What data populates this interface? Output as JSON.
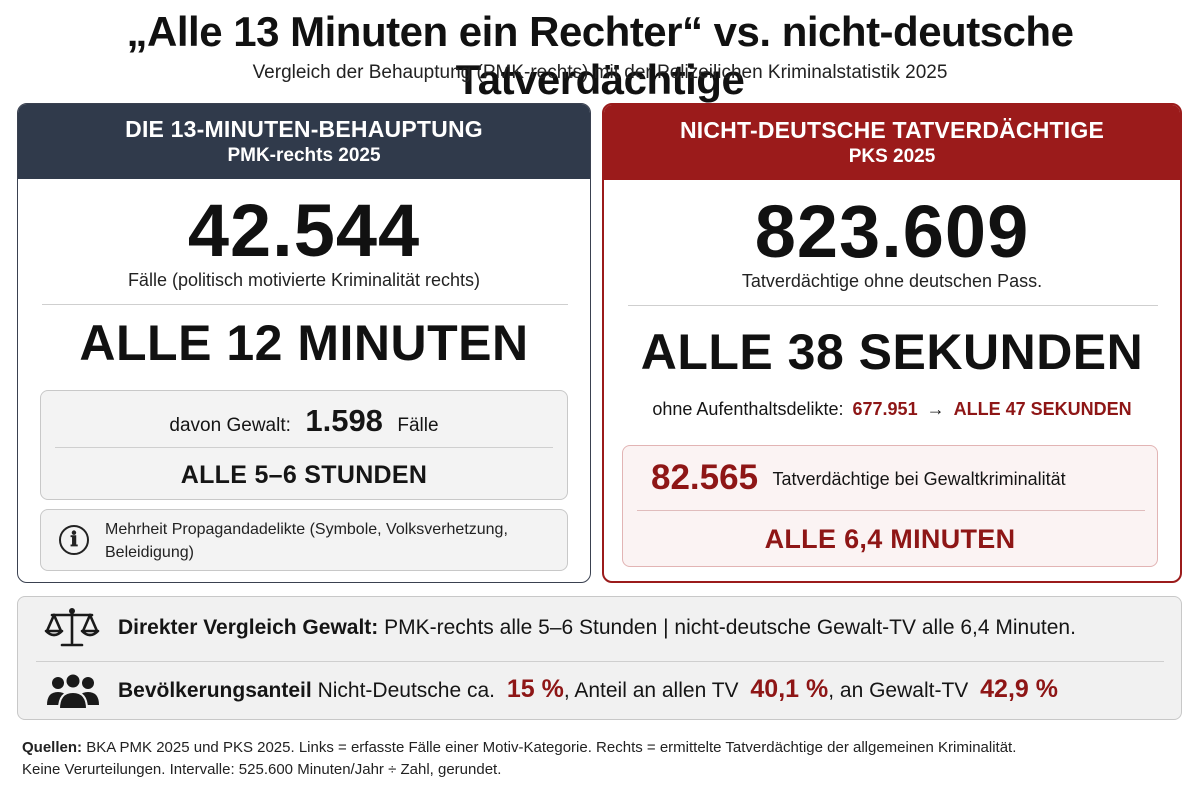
{
  "header": {
    "title": "„Alle 13 Minuten ein Rechter“ vs. nicht-deutsche Tatverdächtige",
    "subtitle": "Vergleich der Behauptung (PMK-rechts) mit der Polizeilichen Kriminalstatistik 2025"
  },
  "left": {
    "head_line1": "DIE 13-MINUTEN-BEHAUPTUNG",
    "head_line2": "PMK-rechts 2025",
    "big_number": "42.544",
    "big_caption": "Fälle (politisch motivierte Kriminalität rechts)",
    "headline": "ALLE 12 MINUTEN",
    "violence_prefix": "davon Gewalt:",
    "violence_number": "1.598",
    "violence_suffix": "Fälle",
    "violence_interval": "ALLE 5–6 STUNDEN",
    "info_icon": "ℹ",
    "info_text": "Mehrheit Propagandadelikte (Symbole, Volksverhetzung, Beleidigung)"
  },
  "right": {
    "head_line1": "NICHT-DEUTSCHE TATVERDÄCHTIGE",
    "head_line2": "PKS 2025",
    "big_number": "823.609",
    "big_caption": "Tatverdächtige ohne deutschen Pass.",
    "headline": "ALLE 38 SEKUNDEN",
    "residence_prefix": "ohne Aufenthaltsdelikte:",
    "residence_number": "677.951",
    "residence_arrow": "→",
    "residence_interval": "ALLE 47 SEKUNDEN",
    "violence_number": "82.565",
    "violence_label": "Tatverdächtige bei Gewaltkriminalität",
    "violence_interval": "ALLE 6,4 MINUTEN"
  },
  "comparison": {
    "icon_scale": "scale-icon",
    "icon_people": "people-icon",
    "row1_bold": "Direkter Vergleich Gewalt:",
    "row1_text": "PMK-rechts alle 5–6 Stunden | nicht-deutsche Gewalt-TV alle 6,4 Minuten.",
    "row2_bold": "Bevölkerungsanteil",
    "row2_text1": "Nicht-Deutsche ca.",
    "row2_pct1": "15 %",
    "row2_text2": ", Anteil an allen TV",
    "row2_pct2": "40,1 %",
    "row2_text3": ", an Gewalt-TV",
    "row2_pct3": "42,9 %"
  },
  "sources": {
    "label": "Quellen:",
    "line1": "BKA PMK 2025 und PKS 2025. Links = erfasste Fälle einer Motiv-Kategorie. Rechts = ermittelte Tatverdächtige der allgemeinen Kriminalität.",
    "line2": "Keine Verurteilungen. Intervalle: 525.600 Minuten/Jahr ÷ Zahl, gerundet."
  },
  "colors": {
    "navy": "#303a4b",
    "dark_red": "#9b1b1b",
    "accent_red": "#8e1616"
  }
}
